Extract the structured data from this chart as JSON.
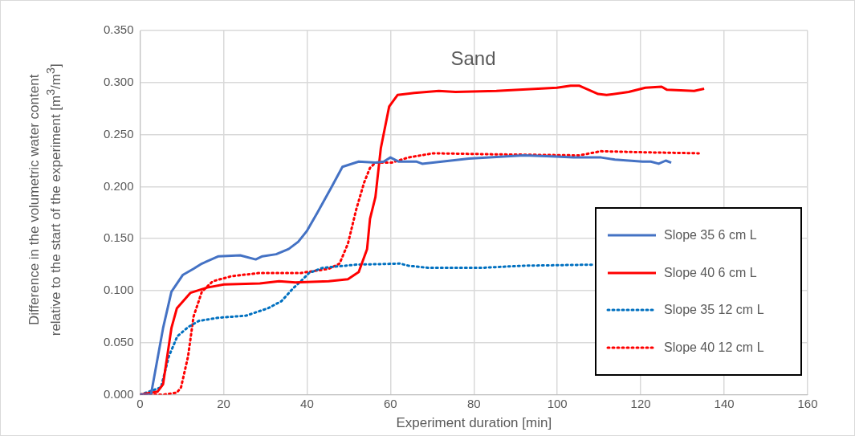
{
  "chart_data": {
    "type": "line",
    "title": "Sand",
    "xlabel": "Experiment duration [min]",
    "ylabel": "Difference in the volumetric water content relative to the start of the experiment [m$^{3}$/m$^{3}$]",
    "xlim": [
      0,
      160
    ],
    "xticks": [
      0,
      20,
      40,
      60,
      80,
      100,
      120,
      140,
      160
    ],
    "ylim": [
      0,
      0.35
    ],
    "yticks": [
      {
        "value": 0,
        "label": "0.000"
      },
      {
        "value": 0.05,
        "label": "0.050"
      },
      {
        "value": 0.1,
        "label": "0.100"
      },
      {
        "value": 0.15,
        "label": "0.150"
      },
      {
        "value": 0.2,
        "label": "0.200"
      },
      {
        "value": 0.25,
        "label": "0.250"
      },
      {
        "value": 0.3,
        "label": "0.300"
      },
      {
        "value": 0.35,
        "label": "0.350"
      }
    ],
    "grid": true,
    "legend": "bottom right",
    "marker": "none",
    "series": [
      {
        "name": "Slope 35 6 cm L",
        "color": "#4472c4",
        "line_style": "solid",
        "x": [
          0,
          2.6,
          5.5,
          7.5,
          10.2,
          12.8,
          14.8,
          18.8,
          24.0,
          27.7,
          29.3,
          32.6,
          35.6,
          37.9,
          39.9,
          42.5,
          45.8,
          48.5,
          52.4,
          56.4,
          58.4,
          60.0,
          62.0,
          66.3,
          67.6,
          78.8,
          92.0,
          98.6,
          103.9,
          110.5,
          113.8,
          120.4,
          122.4,
          124.3,
          126.0,
          127.3
        ],
        "values": [
          0,
          0,
          0.064,
          0.099,
          0.115,
          0.121,
          0.126,
          0.133,
          0.134,
          0.13,
          0.133,
          0.135,
          0.14,
          0.147,
          0.157,
          0.175,
          0.199,
          0.219,
          0.224,
          0.223,
          0.224,
          0.228,
          0.224,
          0.224,
          0.222,
          0.227,
          0.23,
          0.229,
          0.228,
          0.228,
          0.226,
          0.224,
          0.224,
          0.222,
          0.225,
          0.223
        ]
      },
      {
        "name": "Slope 40 6 cm L",
        "color": "#ff0000",
        "line_style": "solid",
        "x": [
          0,
          4.2,
          5.5,
          7.5,
          8.8,
          12.1,
          16.1,
          20.1,
          28.7,
          33.3,
          37.2,
          45.2,
          49.8,
          52.4,
          54.4,
          55.1,
          56.4,
          57.7,
          59.7,
          61.7,
          65.7,
          71.6,
          75.6,
          85.4,
          99.9,
          103.2,
          105.2,
          109.8,
          111.8,
          117.1,
          121.1,
          125.0,
          126.3,
          132.8,
          135.2
        ],
        "values": [
          0,
          0.003,
          0.01,
          0.064,
          0.083,
          0.098,
          0.103,
          0.106,
          0.107,
          0.109,
          0.108,
          0.109,
          0.111,
          0.118,
          0.14,
          0.169,
          0.19,
          0.237,
          0.277,
          0.288,
          0.29,
          0.292,
          0.291,
          0.292,
          0.295,
          0.297,
          0.297,
          0.289,
          0.288,
          0.291,
          0.295,
          0.296,
          0.293,
          0.292,
          0.294
        ]
      },
      {
        "name": "Slope 35 12 cm L",
        "color": "#0070c0",
        "line_style": "dotted",
        "x": [
          0,
          5.0,
          6.9,
          8.9,
          11.5,
          14.1,
          18.8,
          25.4,
          30.6,
          33.9,
          36.6,
          38.5,
          40.5,
          43.8,
          51.8,
          62.3,
          64.3,
          69.0,
          82.1,
          92.0,
          109.0
        ],
        "values": [
          0,
          0.007,
          0.037,
          0.056,
          0.065,
          0.071,
          0.074,
          0.076,
          0.083,
          0.09,
          0.102,
          0.109,
          0.117,
          0.122,
          0.125,
          0.126,
          0.124,
          0.122,
          0.122,
          0.124,
          0.125
        ]
      },
      {
        "name": "Slope 40 12 cm L",
        "color": "#ff0000",
        "line_style": "dotted",
        "x": [
          0,
          5.5,
          8.8,
          9.8,
          11.5,
          12.8,
          14.8,
          17.4,
          22.0,
          28.7,
          38.5,
          45.2,
          47.8,
          49.8,
          51.8,
          53.7,
          55.1,
          56.4,
          60.3,
          64.3,
          70.2,
          85.4,
          105.2,
          110.5,
          120.4,
          133.9
        ],
        "values": [
          0,
          0,
          0.002,
          0.007,
          0.037,
          0.075,
          0.099,
          0.109,
          0.114,
          0.117,
          0.117,
          0.121,
          0.126,
          0.145,
          0.178,
          0.204,
          0.218,
          0.223,
          0.223,
          0.228,
          0.232,
          0.231,
          0.23,
          0.234,
          0.233,
          0.232
        ]
      }
    ]
  }
}
